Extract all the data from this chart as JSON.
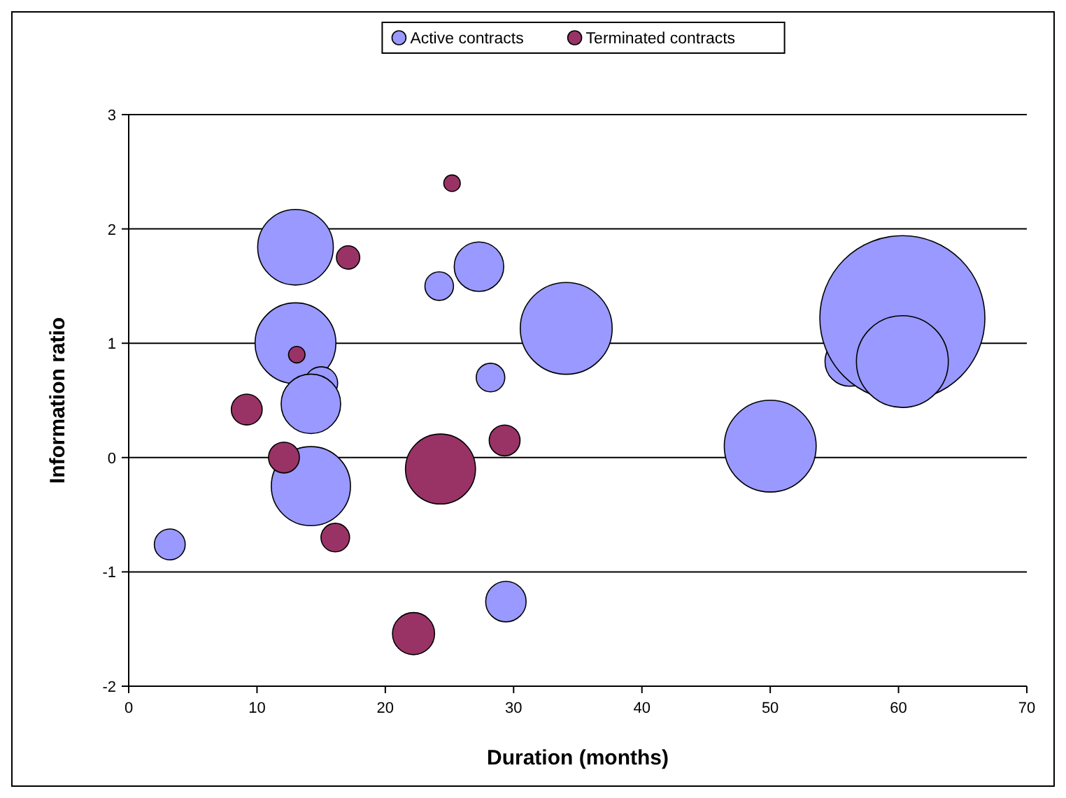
{
  "chart_data": {
    "type": "bubble",
    "xlabel": "Duration (months)",
    "ylabel": "Information ratio",
    "xlim": [
      0,
      70
    ],
    "xticks": [
      0,
      10,
      20,
      30,
      40,
      50,
      60,
      70
    ],
    "ylim": [
      -2,
      3
    ],
    "yticks": [
      -2,
      -1,
      0,
      1,
      2,
      3
    ],
    "grid": "y",
    "legend": "top",
    "series": [
      {
        "name": "Active contracts",
        "color": "#9999ff",
        "x": [
          3.2,
          13,
          13,
          15,
          14.2,
          14.2,
          24.2,
          27.3,
          28.2,
          34.1,
          29.4,
          50,
          56.2,
          60.3,
          60.3
        ],
        "values": [
          -0.76,
          1.84,
          1.0,
          0.65,
          0.47,
          -0.25,
          1.5,
          1.67,
          0.7,
          1.13,
          -1.26,
          0.1,
          0.84,
          1.22,
          0.84
        ],
        "sizes": [
          0.035,
          0.21,
          0.24,
          0.04,
          0.13,
          0.23,
          0.03,
          0.09,
          0.03,
          0.31,
          0.06,
          0.31,
          0.09,
          1,
          0.31
        ]
      },
      {
        "name": "Terminated contracts",
        "color": "#993366",
        "x": [
          25.2,
          17.1,
          13.1,
          9.2,
          12.1,
          24.3,
          29.3,
          16.1,
          22.2
        ],
        "values": [
          2.4,
          1.75,
          0.9,
          0.42,
          0.0,
          -0.1,
          0.15,
          -0.7,
          -1.54
        ],
        "sizes": [
          0.01,
          0.02,
          0.01,
          0.035,
          0.035,
          0.18,
          0.035,
          0.03,
          0.065
        ]
      }
    ]
  }
}
